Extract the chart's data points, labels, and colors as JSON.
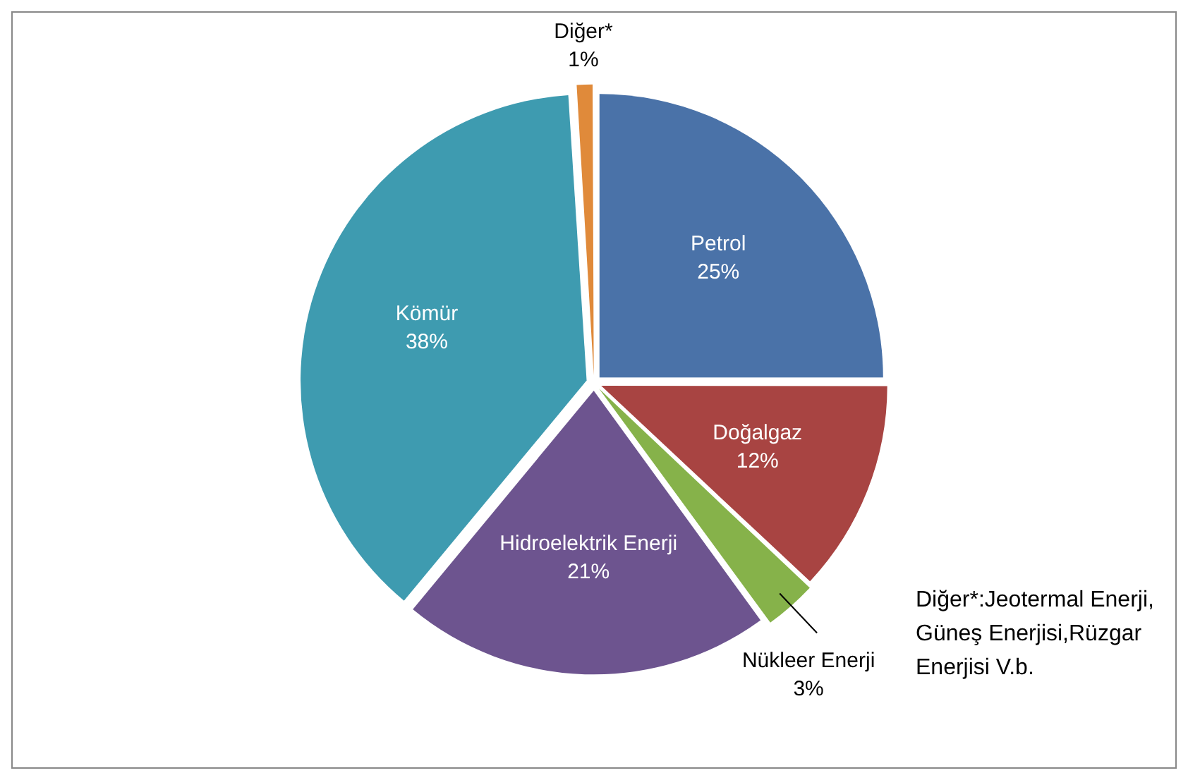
{
  "chart_data": {
    "type": "pie",
    "categories": [
      "Petrol",
      "Doğalgaz",
      "Nükleer Enerji",
      "Hidroelektrik Enerji",
      "Kömür",
      "Diğer*"
    ],
    "values": [
      25,
      12,
      3,
      21,
      38,
      1
    ],
    "value_labels": [
      "25%",
      "12%",
      "3%",
      "21%",
      "38%",
      "1%"
    ],
    "colors": [
      "#4a72a8",
      "#a84442",
      "#86b24a",
      "#6d548f",
      "#3e9bb0",
      "#e08a3a"
    ],
    "annotations": [
      "Diğer*:Jeotermal Enerji, Güneş Enerjisi,Rüzgar Enerjisi V.b."
    ],
    "legend": false
  }
}
